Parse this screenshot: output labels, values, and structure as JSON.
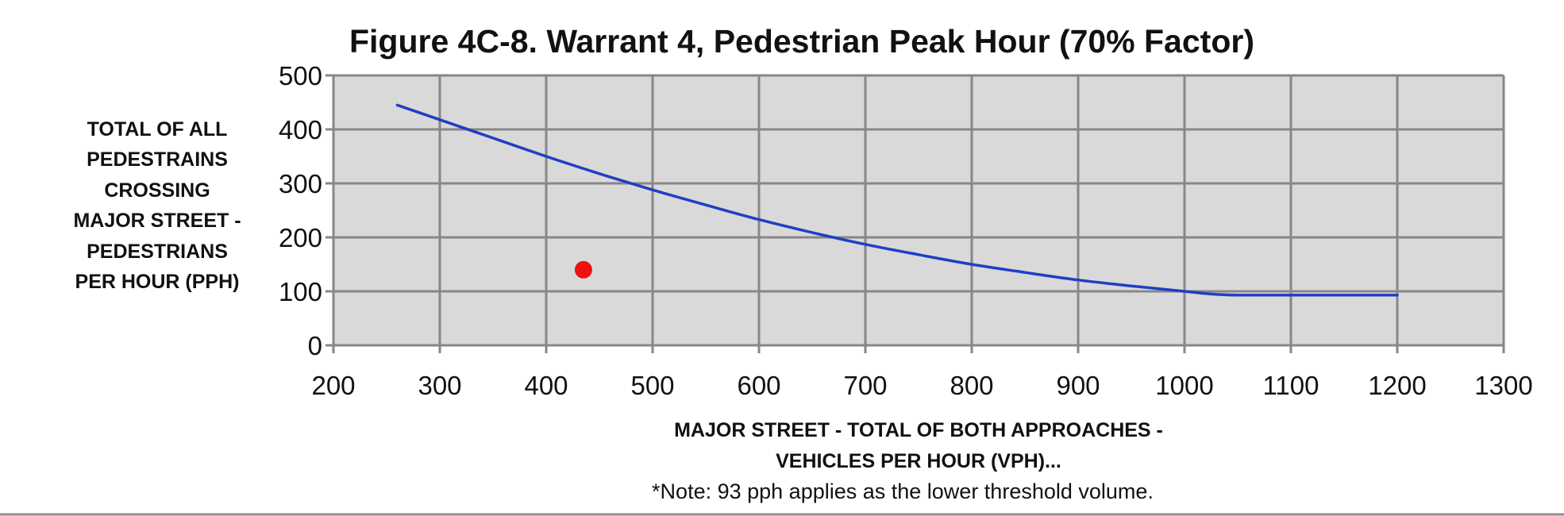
{
  "chart_data": {
    "type": "line",
    "title": "Figure 4C-8. Warrant 4, Pedestrian Peak Hour  (70% Factor)",
    "xlabel_lines": [
      "MAJOR STREET - TOTAL OF BOTH APPROACHES -",
      "VEHICLES PER HOUR (VPH)..."
    ],
    "ylabel_lines": [
      "TOTAL OF ALL",
      "PEDESTRAINS",
      "CROSSING",
      "MAJOR STREET -",
      "PEDESTRIANS",
      "PER HOUR (PPH)"
    ],
    "note": "*Note: 93 pph applies as the lower threshold volume.",
    "xlim": [
      200,
      1300
    ],
    "ylim": [
      0,
      500
    ],
    "x_ticks": [
      "200",
      "300",
      "400",
      "500",
      "600",
      "700",
      "800",
      "900",
      "1000",
      "1100",
      "1200",
      "1300"
    ],
    "y_ticks": [
      "0",
      "100",
      "200",
      "300",
      "400",
      "500"
    ],
    "grid": true,
    "plot_background": "#d9d9d9",
    "grid_color": "#878787",
    "series": [
      {
        "type": "line",
        "color": "#1f3fc4",
        "points": [
          [
            260,
            445
          ],
          [
            300,
            418
          ],
          [
            350,
            384
          ],
          [
            400,
            350
          ],
          [
            450,
            318
          ],
          [
            500,
            288
          ],
          [
            550,
            260
          ],
          [
            600,
            233
          ],
          [
            650,
            209
          ],
          [
            700,
            187
          ],
          [
            750,
            168
          ],
          [
            800,
            150
          ],
          [
            850,
            135
          ],
          [
            900,
            121
          ],
          [
            950,
            110
          ],
          [
            1000,
            100
          ],
          [
            1025,
            95
          ],
          [
            1050,
            93
          ],
          [
            1100,
            93
          ],
          [
            1200,
            93
          ]
        ]
      },
      {
        "type": "scatter",
        "color": "#ee1111",
        "points": [
          [
            435,
            140
          ]
        ]
      }
    ]
  }
}
